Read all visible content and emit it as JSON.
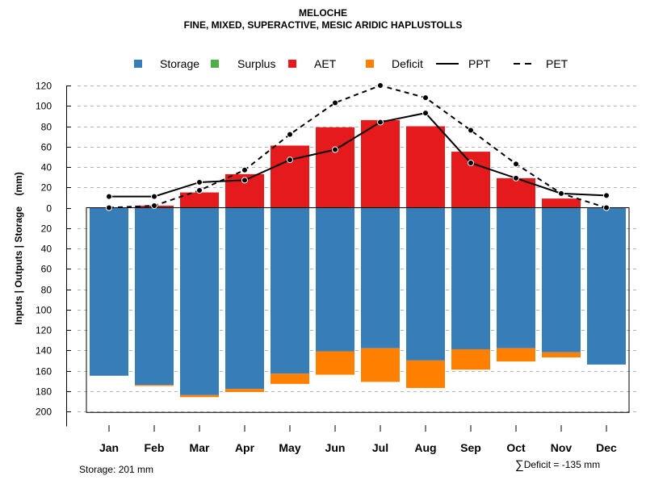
{
  "chart_data": {
    "type": "bar",
    "title": "MELOCHE",
    "subtitle": "FINE, MIXED, SUPERACTIVE, MESIC ARIDIC HAPLUSTOLLS",
    "ylabel": "Inputs | Outputs | Storage    (mm)",
    "xlabel": "",
    "categories": [
      "Jan",
      "Feb",
      "Mar",
      "Apr",
      "May",
      "Jun",
      "Jul",
      "Aug",
      "Sep",
      "Oct",
      "Nov",
      "Dec"
    ],
    "ylim": [
      -200,
      120
    ],
    "yticks": [
      120,
      100,
      80,
      60,
      40,
      20,
      0,
      -20,
      -40,
      -60,
      -80,
      -100,
      -120,
      -140,
      -160,
      -180,
      -200
    ],
    "ytick_labels": [
      "120",
      "100",
      "80",
      "60",
      "40",
      "20",
      "0",
      "20",
      "40",
      "60",
      "80",
      "100",
      "120",
      "140",
      "160",
      "180",
      "200"
    ],
    "grid": true,
    "legend": [
      {
        "label": "Storage",
        "type": "square",
        "color": "#377EB8"
      },
      {
        "label": "Surplus",
        "type": "square",
        "color": "#4DAF4A"
      },
      {
        "label": "AET",
        "type": "square",
        "color": "#E41A1C"
      },
      {
        "label": "Deficit",
        "type": "square",
        "color": "#FF7F00"
      },
      {
        "label": "PPT",
        "type": "line",
        "color": "#000000",
        "dash": "solid"
      },
      {
        "label": "PET",
        "type": "line",
        "color": "#000000",
        "dash": "dashed"
      }
    ],
    "series": [
      {
        "name": "AET",
        "color": "#E41A1C",
        "values": [
          0,
          2,
          15,
          33,
          61,
          79,
          86,
          80,
          55,
          29,
          9,
          0
        ]
      },
      {
        "name": "Storage",
        "color": "#377EB8",
        "values": [
          165,
          174,
          184,
          178,
          163,
          141,
          138,
          150,
          139,
          138,
          142,
          154
        ]
      },
      {
        "name": "Deficit",
        "color": "#FF7F00",
        "values": [
          0,
          1,
          2,
          3,
          10,
          23,
          33,
          27,
          20,
          13,
          5,
          0
        ]
      },
      {
        "name": "Surplus",
        "color": "#4DAF4A",
        "values": [
          0,
          0,
          0,
          0,
          0,
          0,
          0,
          0,
          0,
          0,
          0,
          0
        ]
      },
      {
        "name": "PPT",
        "color": "#000000",
        "values": [
          11,
          11,
          25,
          27,
          47,
          57,
          84,
          93,
          44,
          29,
          14,
          12
        ]
      },
      {
        "name": "PET",
        "color": "#000000",
        "values": [
          0,
          2,
          17,
          37,
          72,
          103,
          120,
          108,
          76,
          43,
          14,
          0
        ]
      }
    ],
    "storage_capacity": 201,
    "footer_left": "Storage: 201 mm",
    "footer_right_symbol": "∑",
    "footer_right": "Deficit = -135 mm"
  }
}
